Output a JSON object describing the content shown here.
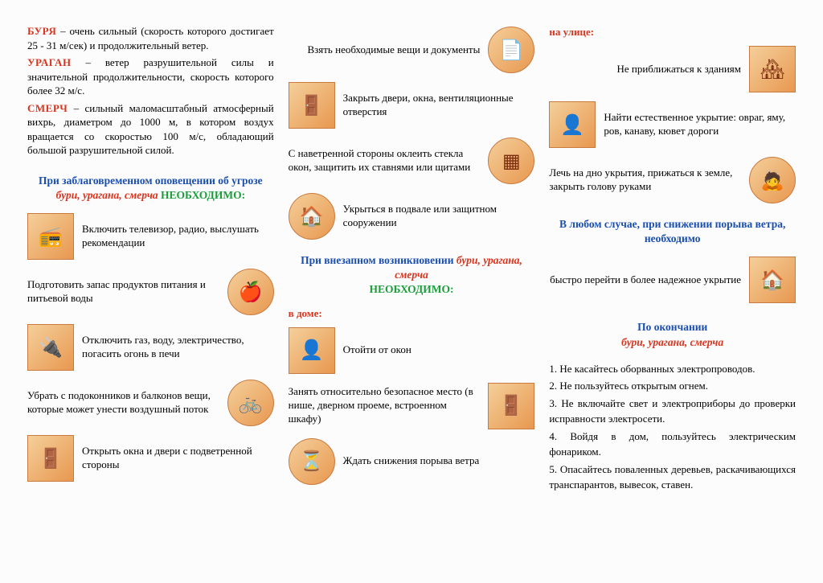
{
  "definitions": {
    "burya_term": "БУРЯ",
    "burya_text": " – очень сильный (скорость которого достигает 25 - 31 м/сек) и продолжительный ветер.",
    "uragan_term": "УРАГАН",
    "uragan_text": " – ветер разрушительной силы и значительной продолжительности, скорость которого более 32 м/с.",
    "smerch_term": "СМЕРЧ",
    "smerch_text": " – сильный маломасштабный атмосферный вихрь, диаметром до 1000 м, в котором воздух вращается со скоростью 100 м/с, обладающий большой разрушительной силой."
  },
  "h1a": "При заблаговременном оповещении об угрозе ",
  "h1b": "бури, урагана, смерча",
  "h1c": " НЕОБХОДИМО:",
  "col1_items": [
    {
      "text": "Включить телевизор, радио, выслушать рекомендации",
      "icon": "📻",
      "shape": "sq"
    },
    {
      "text": "Подготовить запас продуктов питания и питьевой воды",
      "icon": "🍎",
      "shape": "round",
      "rev": true
    },
    {
      "text": "Отключить газ, воду, электричество, погасить огонь в печи",
      "icon": "🔌",
      "shape": "sq"
    },
    {
      "text": "Убрать с подоконников и балконов вещи, которые может унести воздушный поток",
      "icon": "🚲",
      "shape": "round",
      "rev": true
    },
    {
      "text": "Открыть окна и двери с подветренной стороны",
      "icon": "🚪",
      "shape": "sq"
    }
  ],
  "col2_top": [
    {
      "text": "Взять необходимые вещи и документы",
      "icon": "📄",
      "shape": "round",
      "rev": true
    },
    {
      "text": "Закрыть двери, окна, вентиляционные отверстия",
      "icon": "🚪",
      "shape": "sq"
    },
    {
      "text": "С наветренной стороны оклеить стекла окон, защитить их ставнями или щитами",
      "icon": "▦",
      "shape": "round",
      "rev": true
    },
    {
      "text": "Укрыться в подвале или защитном сооружении",
      "icon": "🏠",
      "shape": "round"
    }
  ],
  "h2a": "При внезапном возникновении ",
  "h2b": "бури, урагана, смерча",
  "h2c": "НЕОБХОДИМО:",
  "sub_home": "в доме:",
  "col2_bot": [
    {
      "text": "Отойти от окон",
      "icon": "👤",
      "shape": "sq"
    },
    {
      "text": "Занять относительно безопасное место (в нише, дверном проеме, встроенном шкафу)",
      "icon": "🚪",
      "shape": "sq",
      "rev": true
    },
    {
      "text": "Ждать снижения порыва ветра",
      "icon": "⏳",
      "shape": "round"
    }
  ],
  "sub_street": "на улице:",
  "col3_top": [
    {
      "text": "Не приближаться к зданиям",
      "icon": "🏘",
      "shape": "sq",
      "rev": true
    },
    {
      "text": "Найти естественное укрытие: овраг, яму, ров, канаву, кювет дороги",
      "icon": "👤",
      "shape": "sq"
    },
    {
      "text": "Лечь на дно укрытия, прижаться к земле, закрыть голову руками",
      "icon": "🙇",
      "shape": "round",
      "rev": true
    }
  ],
  "h3a": "В любом случае, при снижении порыва ветра, необходимо",
  "col3_mid": [
    {
      "text": "быстро перейти в более надежное укрытие",
      "icon": "🏠",
      "shape": "sq",
      "rev": true
    }
  ],
  "h4a": "По окончании",
  "h4b": "бури, урагана, смерча",
  "after_items": [
    "1. Не касайтесь оборванных электропроводов.",
    "2. Не пользуйтесь открытым огнем.",
    "3. Не включайте свет и электроприборы до проверки исправности электросети.",
    "4. Войдя в дом, пользуйтесь электрическим фонариком.",
    "5. Опасайтесь поваленных деревьев, раскачивающихся транспарантов, вывесок, ставен."
  ]
}
